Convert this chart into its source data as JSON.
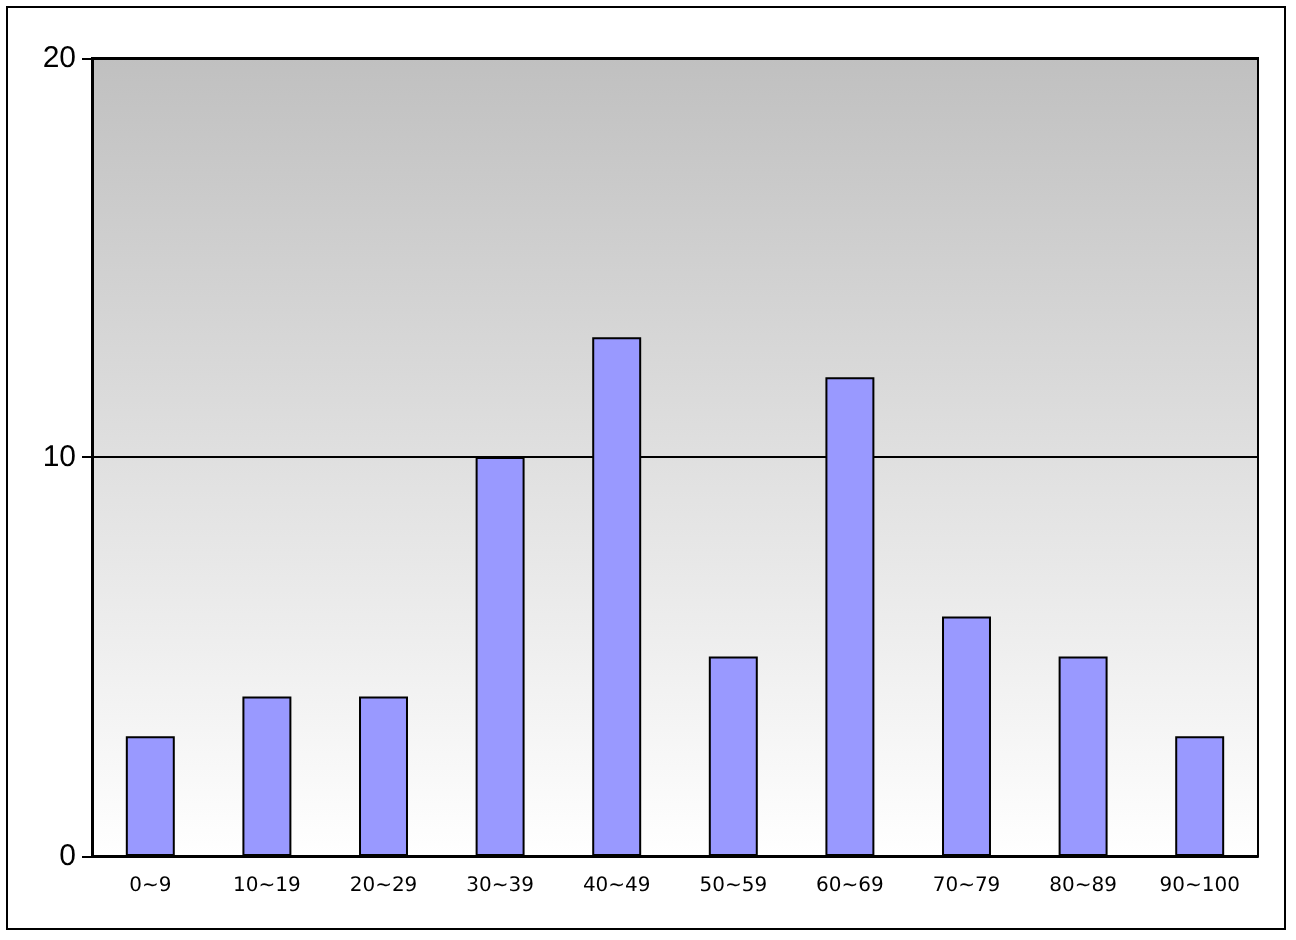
{
  "chart_data": {
    "type": "bar",
    "categories": [
      "0~9",
      "10~19",
      "20~29",
      "30~39",
      "40~49",
      "50~59",
      "60~69",
      "70~79",
      "80~89",
      "90~100"
    ],
    "values": [
      3,
      4,
      4,
      10,
      13,
      5,
      12,
      6,
      5,
      3
    ],
    "color": "#9999ff",
    "ylim": [
      0,
      20
    ],
    "yticks": [
      0,
      10,
      20
    ],
    "grid": "y"
  }
}
